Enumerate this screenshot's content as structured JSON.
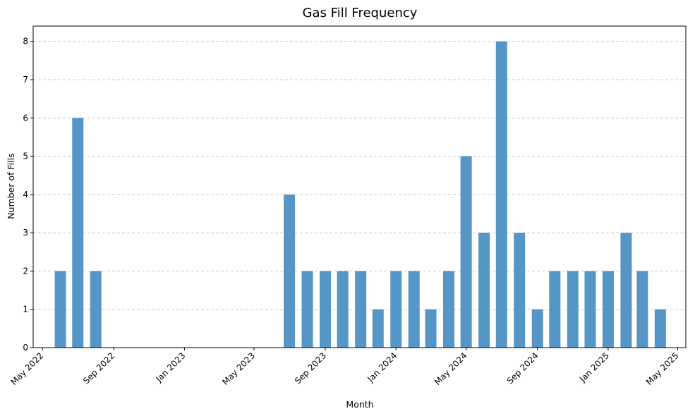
{
  "chart_data": {
    "type": "bar",
    "title": "Gas Fill Frequency",
    "xlabel": "Month",
    "ylabel": "Number of Fills",
    "bar_color": "#5596c6",
    "grid": "y-dashed",
    "ylim": [
      0,
      8.4
    ],
    "yticks": [
      0,
      1,
      2,
      3,
      4,
      5,
      6,
      7,
      8
    ],
    "xlim": [
      "2022-04-15",
      "2025-05-15"
    ],
    "xticks": [
      {
        "date": "2022-05-01",
        "label": "May 2022"
      },
      {
        "date": "2022-09-01",
        "label": "Sep 2022"
      },
      {
        "date": "2023-01-01",
        "label": "Jan 2023"
      },
      {
        "date": "2023-05-01",
        "label": "May 2023"
      },
      {
        "date": "2023-09-01",
        "label": "Sep 2023"
      },
      {
        "date": "2024-01-01",
        "label": "Jan 2024"
      },
      {
        "date": "2024-05-01",
        "label": "May 2024"
      },
      {
        "date": "2024-09-01",
        "label": "Sep 2024"
      },
      {
        "date": "2025-01-01",
        "label": "Jan 2025"
      },
      {
        "date": "2025-05-01",
        "label": "May 2025"
      }
    ],
    "months": [
      "2022-06",
      "2022-07",
      "2022-08",
      "2023-07",
      "2023-08",
      "2023-09",
      "2023-10",
      "2023-11",
      "2023-12",
      "2024-01",
      "2024-02",
      "2024-03",
      "2024-04",
      "2024-05",
      "2024-06",
      "2024-07",
      "2024-08",
      "2024-09",
      "2024-10",
      "2024-11",
      "2024-12",
      "2025-01",
      "2025-02",
      "2025-03",
      "2025-04"
    ],
    "values": [
      2,
      6,
      2,
      4,
      2,
      2,
      2,
      2,
      1,
      2,
      2,
      1,
      2,
      5,
      3,
      8,
      3,
      1,
      2,
      2,
      2,
      2,
      3,
      2,
      1
    ]
  }
}
